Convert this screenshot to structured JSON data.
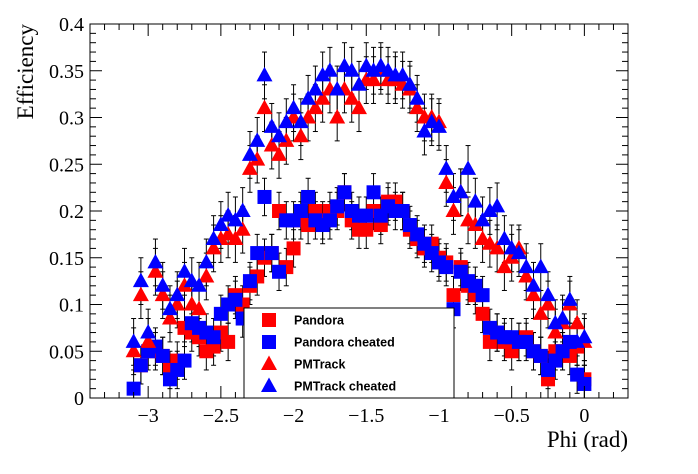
{
  "chart_data": {
    "type": "scatter",
    "xlabel": "Phi (rad)",
    "ylabel": "Efficiency",
    "xlim": [
      -3.4,
      0.3
    ],
    "ylim": [
      0,
      0.4
    ],
    "x_ticks": [
      -3,
      -2.5,
      -2,
      -1.5,
      -1,
      -0.5,
      0
    ],
    "x_tick_labels": [
      "−3",
      "−2.5",
      "−2",
      "−1.5",
      "−1",
      "−0.5",
      "0"
    ],
    "y_ticks": [
      0,
      0.05,
      0.1,
      0.15,
      0.2,
      0.25,
      0.3,
      0.35,
      0.4
    ],
    "y_tick_labels": [
      "0",
      "0.05",
      "0.1",
      "0.15",
      "0.2",
      "0.25",
      "0.3",
      "0.35",
      "0.4"
    ],
    "legend_position": "bottom-center",
    "series": [
      {
        "name": "Pandora",
        "marker": "square",
        "color": "#ff0000",
        "x": [
          -3.05,
          -2.95,
          -2.9,
          -2.85,
          -2.8,
          -2.75,
          -2.7,
          -2.65,
          -2.6,
          -2.55,
          -2.5,
          -2.45,
          -2.4,
          -2.35,
          -2.3,
          -2.25,
          -2.2,
          -2.15,
          -2.1,
          -2.05,
          -2.0,
          -1.95,
          -1.9,
          -1.85,
          -1.8,
          -1.75,
          -1.7,
          -1.65,
          -1.6,
          -1.55,
          -1.5,
          -1.45,
          -1.4,
          -1.35,
          -1.3,
          -1.25,
          -1.2,
          -1.15,
          -1.1,
          -1.05,
          -1.0,
          -0.95,
          -0.9,
          -0.85,
          -0.8,
          -0.75,
          -0.7,
          -0.65,
          -0.6,
          -0.55,
          -0.5,
          -0.45,
          -0.4,
          -0.35,
          -0.3,
          -0.25,
          -0.2,
          -0.15,
          -0.1,
          -0.05,
          0.0
        ],
        "y": [
          0.035,
          0.05,
          0.045,
          0.03,
          0.04,
          0.075,
          0.07,
          0.065,
          0.05,
          0.055,
          0.07,
          0.06,
          0.11,
          0.1,
          0.12,
          0.13,
          0.15,
          0.155,
          0.2,
          0.14,
          0.16,
          0.19,
          0.185,
          0.2,
          0.19,
          0.2,
          0.2,
          0.22,
          0.19,
          0.18,
          0.18,
          0.2,
          0.185,
          0.21,
          0.21,
          0.2,
          0.18,
          0.17,
          0.16,
          0.165,
          0.15,
          0.145,
          0.11,
          0.14,
          0.12,
          0.11,
          0.09,
          0.06,
          0.07,
          0.06,
          0.05,
          0.06,
          0.065,
          0.05,
          0.045,
          0.02,
          0.05,
          0.05,
          0.045,
          0.055,
          0.02
        ],
        "yerr": 0.02
      },
      {
        "name": "Pandora cheated",
        "marker": "square",
        "color": "#0000ff",
        "x": [
          -3.1,
          -3.05,
          -3.0,
          -2.95,
          -2.9,
          -2.85,
          -2.8,
          -2.75,
          -2.7,
          -2.65,
          -2.6,
          -2.55,
          -2.5,
          -2.45,
          -2.4,
          -2.35,
          -2.3,
          -2.25,
          -2.2,
          -2.15,
          -2.1,
          -2.05,
          -2.0,
          -1.95,
          -1.9,
          -1.85,
          -1.8,
          -1.75,
          -1.7,
          -1.65,
          -1.6,
          -1.55,
          -1.5,
          -1.45,
          -1.4,
          -1.35,
          -1.3,
          -1.25,
          -1.2,
          -1.15,
          -1.1,
          -1.05,
          -1.0,
          -0.95,
          -0.9,
          -0.85,
          -0.8,
          -0.75,
          -0.7,
          -0.65,
          -0.6,
          -0.55,
          -0.5,
          -0.45,
          -0.4,
          -0.35,
          -0.3,
          -0.25,
          -0.2,
          -0.15,
          -0.1,
          -0.05,
          0.0
        ],
        "y": [
          0.01,
          0.035,
          0.05,
          0.055,
          0.045,
          0.02,
          0.03,
          0.04,
          0.08,
          0.075,
          0.07,
          0.065,
          0.09,
          0.1,
          0.105,
          0.085,
          0.125,
          0.155,
          0.215,
          0.155,
          0.135,
          0.19,
          0.19,
          0.2,
          0.215,
          0.19,
          0.185,
          0.19,
          0.205,
          0.22,
          0.2,
          0.195,
          0.195,
          0.22,
          0.195,
          0.205,
          0.2,
          0.2,
          0.185,
          0.175,
          0.165,
          0.155,
          0.145,
          0.14,
          0.095,
          0.135,
          0.125,
          0.12,
          0.11,
          0.075,
          0.07,
          0.065,
          0.065,
          0.06,
          0.06,
          0.05,
          0.045,
          0.03,
          0.04,
          0.05,
          0.06,
          0.025,
          0.015
        ],
        "yerr": 0.02
      },
      {
        "name": "PMTrack",
        "marker": "triangle",
        "color": "#ff0000",
        "x": [
          -3.1,
          -3.05,
          -3.0,
          -2.95,
          -2.9,
          -2.85,
          -2.8,
          -2.75,
          -2.7,
          -2.65,
          -2.6,
          -2.55,
          -2.5,
          -2.45,
          -2.4,
          -2.35,
          -2.3,
          -2.25,
          -2.2,
          -2.15,
          -2.1,
          -2.05,
          -2.0,
          -1.95,
          -1.9,
          -1.85,
          -1.8,
          -1.75,
          -1.7,
          -1.65,
          -1.6,
          -1.55,
          -1.5,
          -1.45,
          -1.4,
          -1.35,
          -1.3,
          -1.25,
          -1.2,
          -1.15,
          -1.1,
          -1.05,
          -1.0,
          -0.95,
          -0.9,
          -0.85,
          -0.8,
          -0.75,
          -0.7,
          -0.65,
          -0.6,
          -0.55,
          -0.5,
          -0.45,
          -0.4,
          -0.35,
          -0.3,
          -0.25,
          -0.2,
          -0.15,
          -0.1,
          -0.05,
          0.0
        ],
        "y": [
          0.05,
          0.11,
          0.06,
          0.135,
          0.11,
          0.085,
          0.1,
          0.12,
          0.1,
          0.095,
          0.13,
          0.16,
          0.17,
          0.175,
          0.17,
          0.18,
          0.245,
          0.255,
          0.31,
          0.27,
          0.26,
          0.275,
          0.3,
          0.28,
          0.3,
          0.31,
          0.32,
          0.33,
          0.3,
          0.33,
          0.32,
          0.31,
          0.34,
          0.34,
          0.35,
          0.34,
          0.34,
          0.335,
          0.33,
          0.31,
          0.3,
          0.3,
          0.295,
          0.23,
          0.2,
          0.22,
          0.19,
          0.185,
          0.17,
          0.165,
          0.16,
          0.14,
          0.15,
          0.16,
          0.13,
          0.11,
          0.09,
          0.1,
          0.07,
          0.08,
          0.1,
          0.08,
          0.06
        ],
        "yerr": 0.025
      },
      {
        "name": "PMTrack cheated",
        "marker": "triangle",
        "color": "#0000ff",
        "x": [
          -3.1,
          -3.05,
          -3.0,
          -2.95,
          -2.9,
          -2.85,
          -2.8,
          -2.75,
          -2.7,
          -2.65,
          -2.6,
          -2.55,
          -2.5,
          -2.45,
          -2.4,
          -2.35,
          -2.3,
          -2.25,
          -2.2,
          -2.15,
          -2.1,
          -2.05,
          -2.0,
          -1.95,
          -1.9,
          -1.85,
          -1.8,
          -1.75,
          -1.7,
          -1.65,
          -1.6,
          -1.55,
          -1.5,
          -1.45,
          -1.4,
          -1.35,
          -1.3,
          -1.25,
          -1.2,
          -1.15,
          -1.1,
          -1.05,
          -1.0,
          -0.95,
          -0.9,
          -0.85,
          -0.8,
          -0.75,
          -0.7,
          -0.65,
          -0.6,
          -0.55,
          -0.5,
          -0.45,
          -0.4,
          -0.35,
          -0.3,
          -0.25,
          -0.2,
          -0.15,
          -0.1,
          -0.05,
          0.0
        ],
        "y": [
          0.06,
          0.125,
          0.07,
          0.145,
          0.12,
          0.095,
          0.11,
          0.135,
          0.125,
          0.12,
          0.145,
          0.17,
          0.185,
          0.195,
          0.19,
          0.2,
          0.26,
          0.275,
          0.345,
          0.29,
          0.28,
          0.295,
          0.31,
          0.295,
          0.32,
          0.33,
          0.345,
          0.35,
          0.33,
          0.355,
          0.35,
          0.335,
          0.355,
          0.35,
          0.355,
          0.35,
          0.345,
          0.345,
          0.335,
          0.32,
          0.285,
          0.295,
          0.29,
          0.245,
          0.215,
          0.22,
          0.245,
          0.21,
          0.19,
          0.2,
          0.205,
          0.17,
          0.16,
          0.155,
          0.14,
          0.12,
          0.14,
          0.11,
          0.08,
          0.085,
          0.105,
          0.06,
          0.065
        ],
        "yerr": 0.025
      }
    ]
  }
}
